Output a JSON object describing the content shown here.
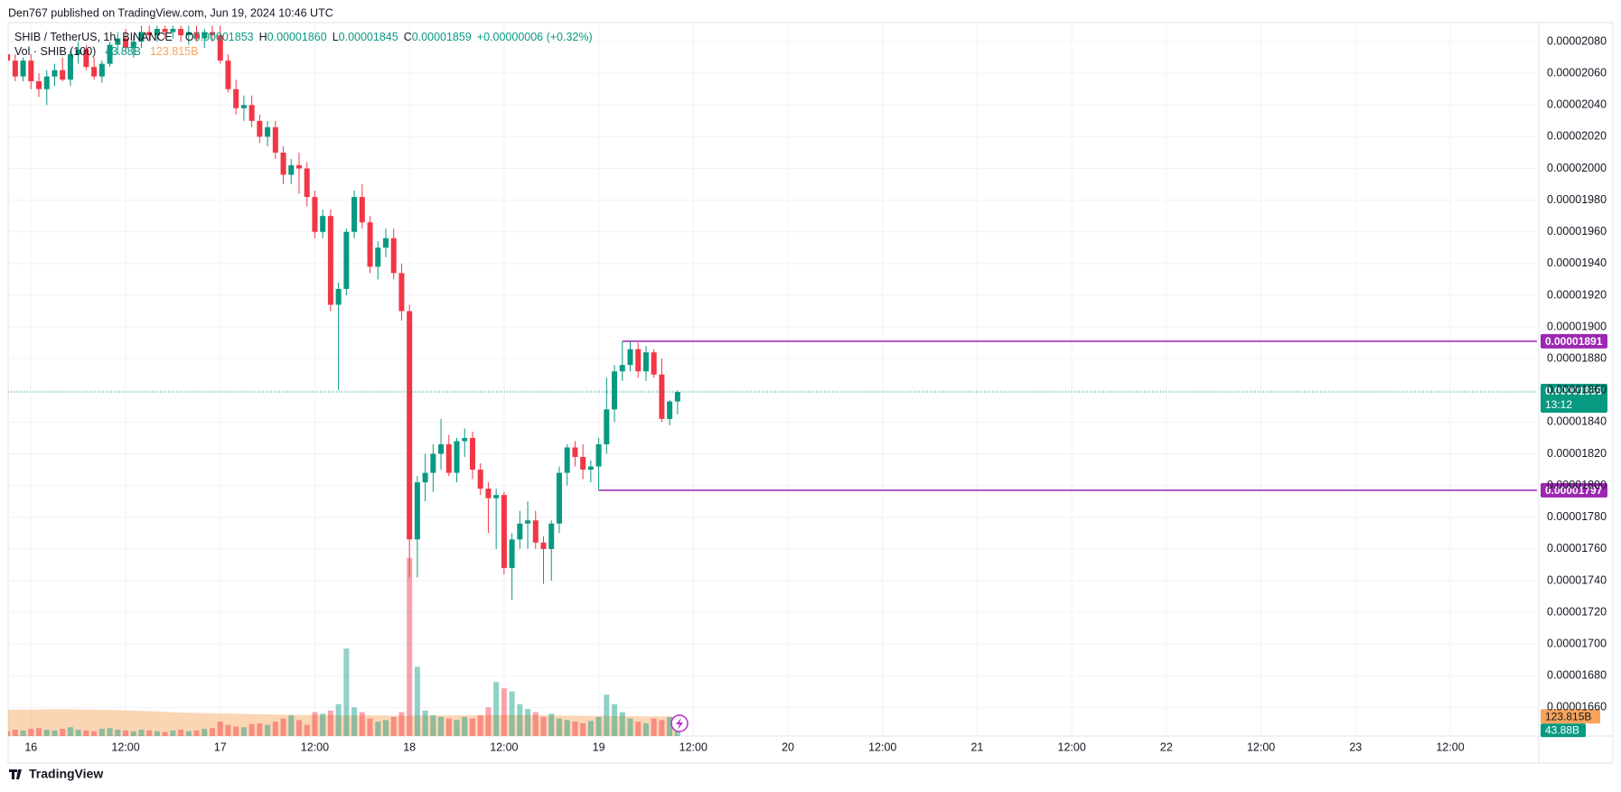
{
  "chart_data": {
    "type": "candlestick",
    "header": "Den767 published on TradingView.com, Jun 19, 2024 10:46 UTC",
    "title": "SHIB / TetherUS, 1h, BINANCE",
    "ohlc": [
      {
        "label": "O",
        "value": "0.00001853"
      },
      {
        "label": "H",
        "value": "0.00001860"
      },
      {
        "label": "L",
        "value": "0.00001845"
      },
      {
        "label": "C",
        "value": "0.00001859"
      }
    ],
    "change": "+0.00000006 (+0.32%)",
    "volume_title": "Vol · SHIB (100)",
    "volume_last_label": "43.88B",
    "volume_ma_label": "123.815B",
    "footer": "TradingView",
    "up_color": "#089981",
    "down_color": "#f23645",
    "ma_color": "#f7a35c",
    "level_color": "#9c27b0",
    "grid": true,
    "x": [
      -3,
      -2,
      -1,
      0,
      1,
      2,
      3,
      4,
      5,
      6,
      7,
      8,
      9,
      10,
      11,
      12,
      13,
      14,
      15,
      16,
      17,
      18,
      19,
      20,
      21,
      22,
      23,
      24,
      25,
      26,
      27,
      28,
      29,
      30,
      31,
      32,
      33,
      34,
      35,
      36,
      37,
      38,
      39,
      40,
      41,
      42,
      43,
      44,
      45,
      46,
      47,
      48,
      49,
      50,
      51,
      52,
      53,
      54,
      55,
      56,
      57,
      58,
      59,
      60,
      61,
      62,
      63,
      64,
      65,
      66,
      67,
      68,
      69,
      70,
      71,
      72,
      73,
      74,
      75,
      76,
      77,
      78,
      79,
      80,
      81,
      82
    ],
    "open": [
      2.072e-05,
      2.068e-05,
      2.058e-05,
      2.068e-05,
      2.055e-05,
      2.05e-05,
      2.058e-05,
      2.062e-05,
      2.056e-05,
      2.072e-05,
      2.075e-05,
      2.064e-05,
      2.058e-05,
      2.066e-05,
      2.078e-05,
      2.082e-05,
      2.076e-05,
      2.08e-05,
      2.086e-05,
      2.084e-05,
      2.088e-05,
      2.086e-05,
      2.088e-05,
      2.084e-05,
      2.086e-05,
      2.082e-05,
      2.086e-05,
      2.084e-05,
      2.068e-05,
      2.05e-05,
      2.038e-05,
      2.04e-05,
      2.03e-05,
      2.02e-05,
      2.026e-05,
      2.01e-05,
      1.996e-05,
      2.002e-05,
      2e-05,
      1.982e-05,
      1.96e-05,
      1.97e-05,
      1.914e-05,
      1.924e-05,
      1.96e-05,
      1.982e-05,
      1.966e-05,
      1.938e-05,
      1.95e-05,
      1.956e-05,
      1.934e-05,
      1.91e-05,
      1.766e-05,
      1.802e-05,
      1.808e-05,
      1.82e-05,
      1.826e-05,
      1.808e-05,
      1.828e-05,
      1.83e-05,
      1.81e-05,
      1.798e-05,
      1.792e-05,
      1.794e-05,
      1.748e-05,
      1.766e-05,
      1.776e-05,
      1.778e-05,
      1.764e-05,
      1.76e-05,
      1.776e-05,
      1.808e-05,
      1.824e-05,
      1.818e-05,
      1.81e-05,
      1.812e-05,
      1.826e-05,
      1.848e-05,
      1.872e-05,
      1.876e-05,
      1.886e-05,
      1.872e-05,
      1.884e-05,
      1.87e-05,
      1.842e-05,
      1.853e-05
    ],
    "high": [
      2.078e-05,
      2.072e-05,
      2.07e-05,
      2.072e-05,
      2.06e-05,
      2.062e-05,
      2.066e-05,
      2.07e-05,
      2.074e-05,
      2.08e-05,
      2.078e-05,
      2.07e-05,
      2.068e-05,
      2.08e-05,
      2.086e-05,
      2.088e-05,
      2.084e-05,
      2.09e-05,
      2.09e-05,
      2.09e-05,
      2.09e-05,
      2.09e-05,
      2.09e-05,
      2.09e-05,
      2.09e-05,
      2.088e-05,
      2.09e-05,
      2.09e-05,
      2.072e-05,
      2.056e-05,
      2.046e-05,
      2.046e-05,
      2.034e-05,
      2.03e-05,
      2.03e-05,
      2.014e-05,
      2.006e-05,
      2.01e-05,
      2.004e-05,
      1.986e-05,
      1.974e-05,
      1.974e-05,
      1.928e-05,
      1.962e-05,
      1.986e-05,
      1.99e-05,
      1.97e-05,
      1.954e-05,
      1.962e-05,
      1.962e-05,
      1.94e-05,
      1.914e-05,
      1.806e-05,
      1.82e-05,
      1.826e-05,
      1.842e-05,
      1.832e-05,
      1.83e-05,
      1.836e-05,
      1.834e-05,
      1.814e-05,
      1.802e-05,
      1.798e-05,
      1.796e-05,
      1.77e-05,
      1.784e-05,
      1.79e-05,
      1.784e-05,
      1.768e-05,
      1.778e-05,
      1.812e-05,
      1.826e-05,
      1.828e-05,
      1.826e-05,
      1.816e-05,
      1.83e-05,
      1.868e-05,
      1.876e-05,
      1.891e-05,
      1.891e-05,
      1.89e-05,
      1.888e-05,
      1.886e-05,
      1.88e-05,
      1.854e-05,
      1.86e-05
    ],
    "low": [
      2.062e-05,
      2.055e-05,
      2.055e-05,
      2.05e-05,
      2.045e-05,
      2.04e-05,
      2.052e-05,
      2.055e-05,
      2.052e-05,
      2.066e-05,
      2.062e-05,
      2.056e-05,
      2.054e-05,
      2.064e-05,
      2.072e-05,
      2.074e-05,
      2.07e-05,
      2.076e-05,
      2.08e-05,
      2.08e-05,
      2.082e-05,
      2.082e-05,
      2.08e-05,
      2.078e-05,
      2.08e-05,
      2.076e-05,
      2.08e-05,
      2.066e-05,
      2.048e-05,
      2.034e-05,
      2.03e-05,
      2.026e-05,
      2.016e-05,
      2.014e-05,
      2.006e-05,
      1.99e-05,
      1.99e-05,
      1.984e-05,
      1.976e-05,
      1.956e-05,
      1.956e-05,
      1.91e-05,
      1.86e-05,
      1.92e-05,
      1.956e-05,
      1.962e-05,
      1.934e-05,
      1.93e-05,
      1.944e-05,
      1.93e-05,
      1.904e-05,
      1.742e-05,
      1.742e-05,
      1.79e-05,
      1.796e-05,
      1.81e-05,
      1.806e-05,
      1.802e-05,
      1.818e-05,
      1.804e-05,
      1.794e-05,
      1.77e-05,
      1.76e-05,
      1.744e-05,
      1.728e-05,
      1.76e-05,
      1.76e-05,
      1.76e-05,
      1.738e-05,
      1.74e-05,
      1.77e-05,
      1.8e-05,
      1.812e-05,
      1.804e-05,
      1.802e-05,
      1.797e-05,
      1.82e-05,
      1.84e-05,
      1.866e-05,
      1.872e-05,
      1.868e-05,
      1.866e-05,
      1.868e-05,
      1.84e-05,
      1.838e-05,
      1.845e-05
    ],
    "close": [
      2.068e-05,
      2.058e-05,
      2.068e-05,
      2.055e-05,
      2.05e-05,
      2.058e-05,
      2.062e-05,
      2.056e-05,
      2.072e-05,
      2.075e-05,
      2.064e-05,
      2.058e-05,
      2.066e-05,
      2.078e-05,
      2.082e-05,
      2.076e-05,
      2.08e-05,
      2.086e-05,
      2.084e-05,
      2.088e-05,
      2.086e-05,
      2.088e-05,
      2.084e-05,
      2.086e-05,
      2.082e-05,
      2.086e-05,
      2.084e-05,
      2.068e-05,
      2.05e-05,
      2.038e-05,
      2.04e-05,
      2.03e-05,
      2.02e-05,
      2.026e-05,
      2.01e-05,
      1.996e-05,
      2.002e-05,
      2e-05,
      1.982e-05,
      1.96e-05,
      1.97e-05,
      1.914e-05,
      1.924e-05,
      1.96e-05,
      1.982e-05,
      1.966e-05,
      1.938e-05,
      1.95e-05,
      1.956e-05,
      1.934e-05,
      1.91e-05,
      1.766e-05,
      1.802e-05,
      1.808e-05,
      1.82e-05,
      1.826e-05,
      1.808e-05,
      1.828e-05,
      1.83e-05,
      1.81e-05,
      1.798e-05,
      1.792e-05,
      1.794e-05,
      1.748e-05,
      1.766e-05,
      1.776e-05,
      1.778e-05,
      1.764e-05,
      1.76e-05,
      1.776e-05,
      1.808e-05,
      1.824e-05,
      1.818e-05,
      1.81e-05,
      1.812e-05,
      1.826e-05,
      1.848e-05,
      1.872e-05,
      1.876e-05,
      1.886e-05,
      1.872e-05,
      1.884e-05,
      1.87e-05,
      1.842e-05,
      1.853e-05,
      1.859e-05
    ],
    "volume": [
      30,
      40,
      35,
      45,
      50,
      40,
      35,
      45,
      55,
      40,
      35,
      30,
      45,
      50,
      40,
      35,
      30,
      40,
      35,
      30,
      25,
      35,
      40,
      30,
      35,
      45,
      50,
      90,
      70,
      60,
      55,
      75,
      80,
      70,
      90,
      110,
      130,
      100,
      70,
      150,
      140,
      160,
      200,
      550,
      180,
      150,
      110,
      90,
      100,
      120,
      150,
      1120,
      435,
      160,
      130,
      120,
      110,
      100,
      120,
      110,
      130,
      180,
      340,
      300,
      280,
      200,
      170,
      150,
      120,
      140,
      110,
      100,
      90,
      80,
      95,
      120,
      260,
      200,
      150,
      110,
      90,
      80,
      110,
      100,
      120,
      43.88
    ],
    "volume_ma": [
      165,
      166,
      166,
      167,
      167,
      168,
      168,
      168,
      168,
      167,
      167,
      166,
      165,
      164,
      163,
      161,
      160,
      158,
      156,
      154,
      152,
      150,
      148,
      146,
      145,
      144,
      143,
      142,
      141,
      140,
      139,
      138,
      137,
      136,
      135,
      134,
      133,
      133,
      132,
      132,
      131,
      131,
      130,
      130,
      130,
      130,
      129,
      129,
      129,
      128,
      128,
      128,
      128,
      129,
      129,
      130,
      130,
      130,
      131,
      131,
      131,
      131,
      132,
      132,
      132,
      131,
      131,
      130,
      130,
      129,
      129,
      128,
      128,
      127,
      127,
      126,
      126,
      126,
      125,
      125,
      125,
      124,
      124,
      124,
      124,
      123.815
    ],
    "volume_ylim": [
      0,
      4485
    ],
    "levels": [
      {
        "value": 1.891e-05,
        "label": "0.00001891",
        "from": 75
      },
      {
        "value": 1.797e-05,
        "label": "0.00001797",
        "from": 72
      }
    ],
    "last_price_label": "0.00001859",
    "countdown": "13:12",
    "xlim": [
      -2.9,
      191
    ],
    "xticks": [
      {
        "value": 0,
        "label": "16"
      },
      {
        "value": 12,
        "label": "12:00"
      },
      {
        "value": 24,
        "label": "17"
      },
      {
        "value": 36,
        "label": "12:00"
      },
      {
        "value": 48,
        "label": "18"
      },
      {
        "value": 60,
        "label": "12:00"
      },
      {
        "value": 72,
        "label": "19"
      },
      {
        "value": 84,
        "label": "12:00"
      },
      {
        "value": 96,
        "label": "20"
      },
      {
        "value": 108,
        "label": "12:00"
      },
      {
        "value": 120,
        "label": "21"
      },
      {
        "value": 132,
        "label": "12:00"
      },
      {
        "value": 144,
        "label": "22"
      },
      {
        "value": 156,
        "label": "12:00"
      },
      {
        "value": 168,
        "label": "23"
      },
      {
        "value": 180,
        "label": "12:00"
      }
    ],
    "ylim": [
      1.642e-05,
      2.092e-05
    ],
    "yticks": [
      {
        "value": 1.66e-05,
        "label": "0.00001660"
      },
      {
        "value": 1.68e-05,
        "label": "0.00001680"
      },
      {
        "value": 1.7e-05,
        "label": "0.00001700"
      },
      {
        "value": 1.72e-05,
        "label": "0.00001720"
      },
      {
        "value": 1.74e-05,
        "label": "0.00001740"
      },
      {
        "value": 1.76e-05,
        "label": "0.00001760"
      },
      {
        "value": 1.78e-05,
        "label": "0.00001780"
      },
      {
        "value": 1.8e-05,
        "label": "0.00001800"
      },
      {
        "value": 1.82e-05,
        "label": "0.00001820"
      },
      {
        "value": 1.84e-05,
        "label": "0.00001840"
      },
      {
        "value": 1.86e-05,
        "label": "0.00001860"
      },
      {
        "value": 1.88e-05,
        "label": "0.00001880"
      },
      {
        "value": 1.9e-05,
        "label": "0.00001900"
      },
      {
        "value": 1.92e-05,
        "label": "0.00001920"
      },
      {
        "value": 1.94e-05,
        "label": "0.00001940"
      },
      {
        "value": 1.96e-05,
        "label": "0.00001960"
      },
      {
        "value": 1.98e-05,
        "label": "0.00001980"
      },
      {
        "value": 2e-05,
        "label": "0.00002000"
      },
      {
        "value": 2.02e-05,
        "label": "0.00002020"
      },
      {
        "value": 2.04e-05,
        "label": "0.00002040"
      },
      {
        "value": 2.06e-05,
        "label": "0.00002060"
      },
      {
        "value": 2.08e-05,
        "label": "0.00002080"
      }
    ]
  }
}
